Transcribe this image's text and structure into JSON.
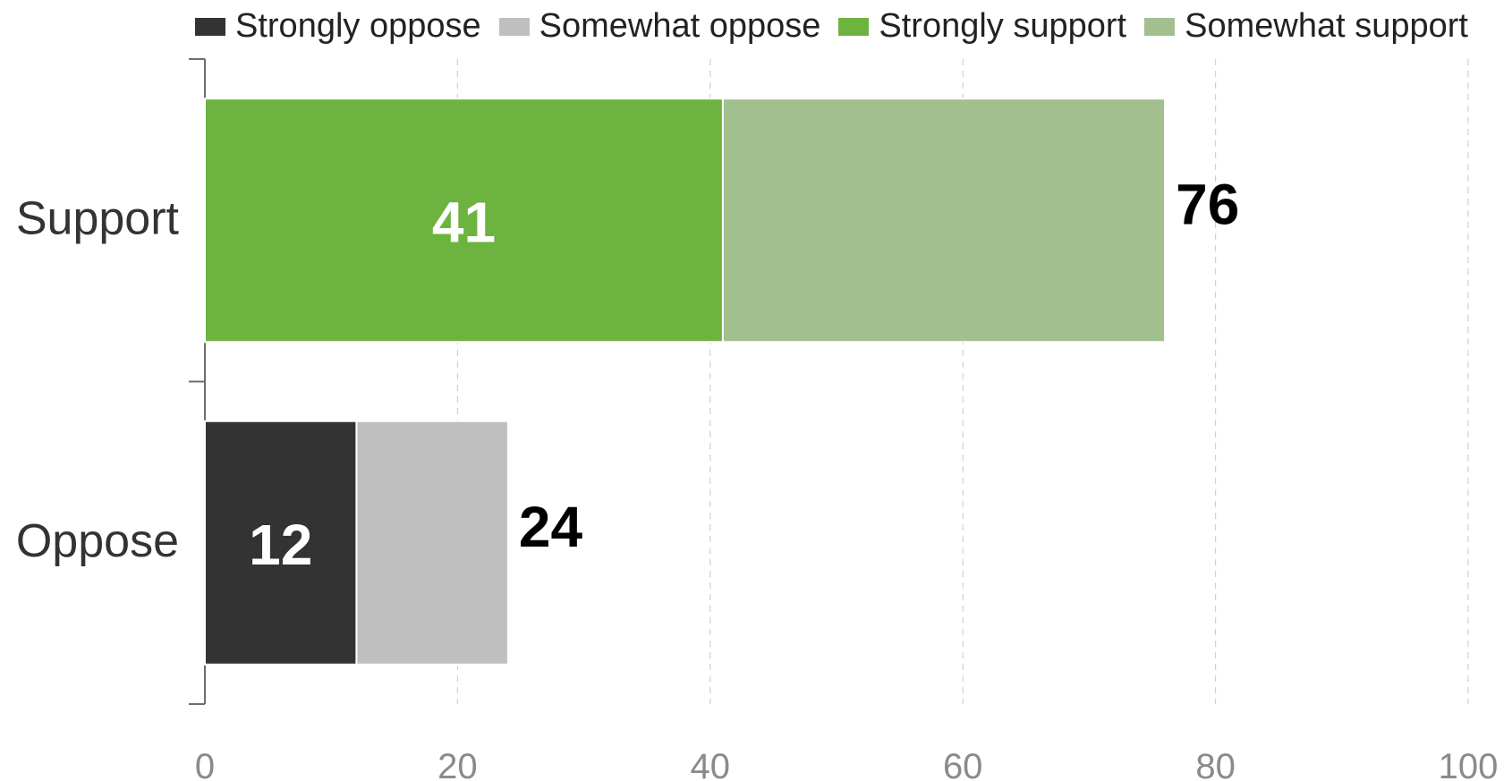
{
  "chart_data": {
    "type": "bar",
    "orientation": "horizontal",
    "stacked": true,
    "categories": [
      "Support",
      "Oppose"
    ],
    "series": [
      {
        "name": "Strongly oppose",
        "values": [
          null,
          12
        ],
        "color": "#333333",
        "label_color": "#ffffff"
      },
      {
        "name": "Somewhat oppose",
        "values": [
          null,
          12
        ],
        "color": "#bfbfbf",
        "label_color": "#222222"
      },
      {
        "name": "Strongly support",
        "values": [
          41,
          null
        ],
        "color": "#6db33f",
        "label_color": "#ffffff"
      },
      {
        "name": "Somewhat support",
        "values": [
          35,
          null
        ],
        "color": "#a2bf8f",
        "label_color": "#222222"
      }
    ],
    "segment_labels": {
      "Support": [
        {
          "series": "Strongly support",
          "text": "41"
        }
      ],
      "Oppose": [
        {
          "series": "Strongly oppose",
          "text": "12"
        }
      ]
    },
    "totals": {
      "Support": "76",
      "Oppose": "24"
    },
    "x_ticks": [
      "0",
      "20",
      "40",
      "60",
      "80",
      "100"
    ],
    "xlim": [
      0,
      100
    ],
    "grid": "vertical-dashed",
    "legend_position": "top",
    "title": "",
    "xlabel": "",
    "ylabel": ""
  }
}
